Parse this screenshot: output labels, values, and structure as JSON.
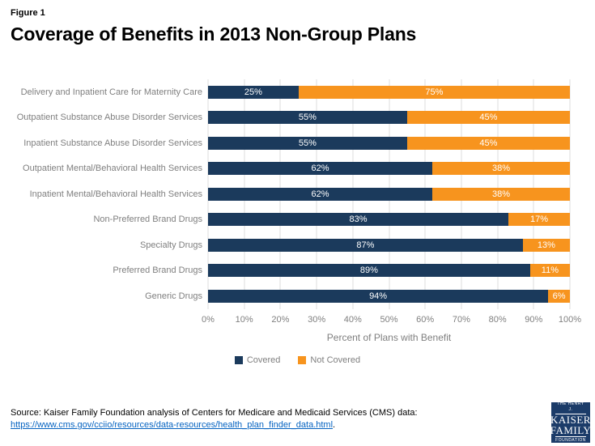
{
  "figure_label": "Figure 1",
  "title": "Coverage of Benefits in 2013 Non-Group Plans",
  "chart_data": {
    "type": "bar",
    "orientation": "horizontal",
    "stacked": true,
    "title": "Coverage of Benefits in 2013 Non-Group Plans",
    "categories": [
      "Delivery and Inpatient Care for Maternity Care",
      "Outpatient Substance Abuse Disorder Services",
      "Inpatient Substance Abuse Disorder Services",
      "Outpatient Mental/Behavioral Health Services",
      "Inpatient Mental/Behavioral Health Services",
      "Non-Preferred Brand Drugs",
      "Specialty Drugs",
      "Preferred Brand Drugs",
      "Generic Drugs"
    ],
    "series": [
      {
        "name": "Covered",
        "color": "#1b3a5c",
        "values": [
          25,
          55,
          55,
          62,
          62,
          83,
          87,
          89,
          94
        ]
      },
      {
        "name": "Not Covered",
        "color": "#f7941e",
        "values": [
          75,
          45,
          45,
          38,
          38,
          17,
          13,
          11,
          6
        ]
      }
    ],
    "value_label_suffix": "%",
    "xlabel": "Percent of Plans with Benefit",
    "xlim": [
      0,
      100
    ],
    "x_ticks": [
      "0%",
      "10%",
      "20%",
      "30%",
      "40%",
      "50%",
      "60%",
      "70%",
      "80%",
      "90%",
      "100%"
    ],
    "grid": "vertical",
    "legend_position": "bottom"
  },
  "source": {
    "line1": "Source: Kaiser Family Foundation analysis of Centers for Medicare and Medicaid Services (CMS) data:",
    "link": "https://www.cms.gov/cciio/resources/data-resources/health_plan_finder_data.html",
    "suffix": "."
  },
  "logo": {
    "line1": "THE HENRY J.",
    "line2": "KAISER",
    "line3": "FAMILY",
    "line4": "FOUNDATION"
  },
  "colors": {
    "covered": "#1b3a5c",
    "not_covered": "#f7941e",
    "gridline": "#dcdcdc",
    "text_gray": "#7f7f7f",
    "link_blue": "#0563c1",
    "logo_navy": "#1c3c69"
  }
}
